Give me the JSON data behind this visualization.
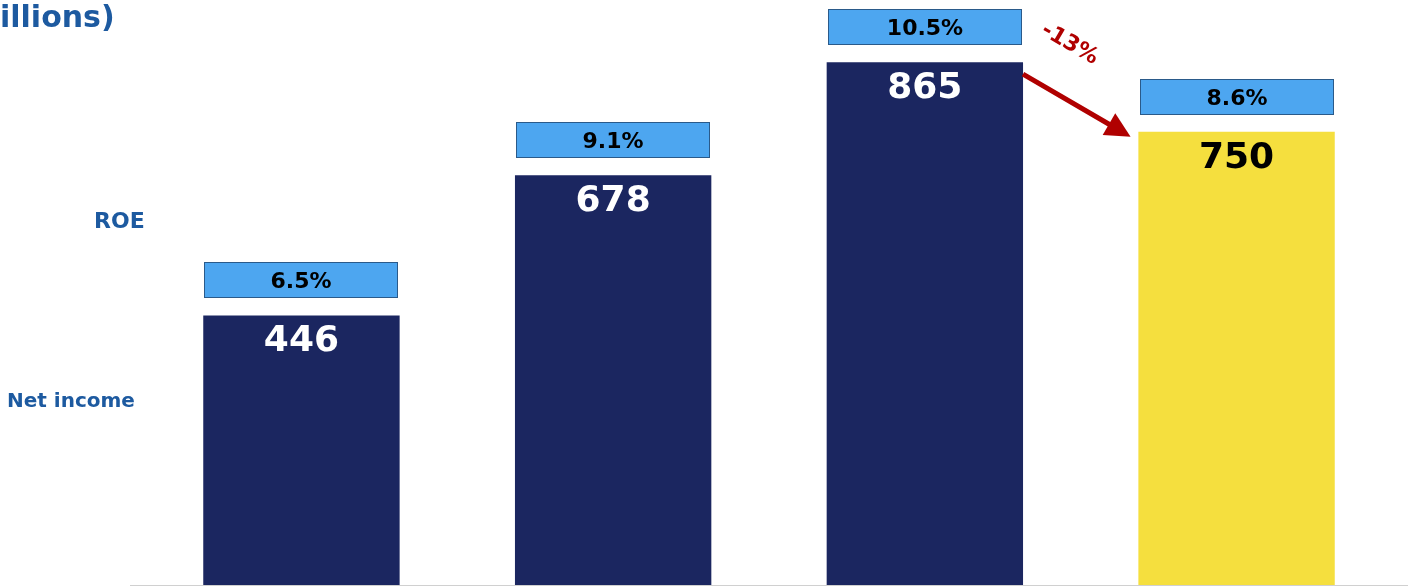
{
  "chart_data": {
    "type": "bar",
    "title": "illions)",
    "categories": [
      null,
      null,
      null,
      null
    ],
    "values": [
      446,
      678,
      865,
      750
    ],
    "colors": [
      "#1b2660",
      "#1b2660",
      "#1b2660",
      "#f5df3e"
    ],
    "data_labels": true,
    "ylim": [
      0,
      968
    ],
    "tick_labels": false,
    "annotations": [
      "ROE",
      "Net income",
      "-13%",
      {
        "text": "6.5%",
        "y": 446
      },
      {
        "text": "9.1%",
        "y": 678
      },
      {
        "text": "10.5%",
        "y": 865
      },
      {
        "text": "8.6%",
        "y": 750
      }
    ]
  }
}
